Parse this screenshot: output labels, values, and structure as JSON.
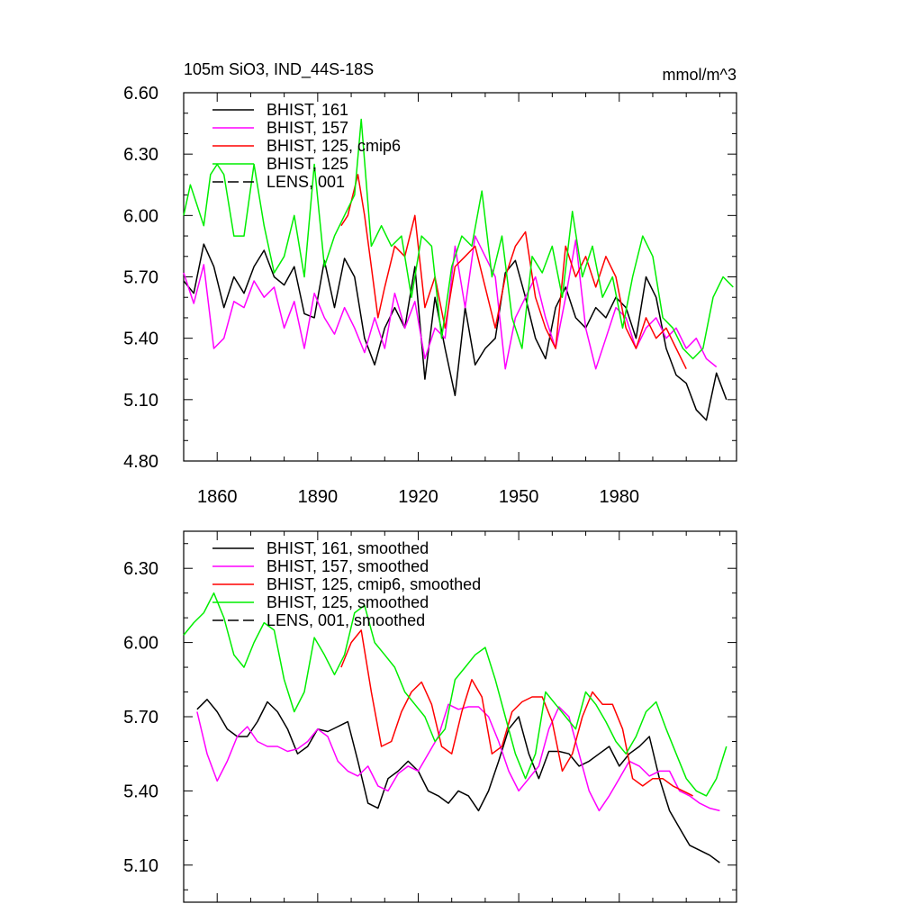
{
  "chart_data": [
    {
      "type": "line",
      "title": "105m SiO3, IND_44S-18S",
      "units": "mmol/m^3",
      "xlim": [
        1850,
        2015
      ],
      "ylim": [
        4.8,
        6.6
      ],
      "xticks": [
        1860,
        1890,
        1920,
        1950,
        1980
      ],
      "yticks": [
        4.8,
        5.1,
        5.4,
        5.7,
        6.0,
        6.3,
        6.6
      ],
      "ytick_labels": [
        "4.80",
        "5.10",
        "5.40",
        "5.70",
        "6.00",
        "6.30",
        "6.60"
      ],
      "xtick_labels": [
        "1860",
        "1890",
        "1920",
        "1950",
        "1980"
      ],
      "show_xtick_labels": true,
      "legend": "top-left",
      "grid": false,
      "series": [
        {
          "name": "BHIST, 161",
          "color": "#000000",
          "dash": "solid",
          "x": [
            1850,
            1853,
            1856,
            1859,
            1862,
            1865,
            1868,
            1871,
            1874,
            1877,
            1880,
            1883,
            1886,
            1889,
            1892,
            1895,
            1898,
            1901,
            1904,
            1907,
            1910,
            1913,
            1916,
            1919,
            1922,
            1925,
            1928,
            1931,
            1934,
            1937,
            1940,
            1943,
            1946,
            1949,
            1952,
            1955,
            1958,
            1961,
            1964,
            1967,
            1970,
            1973,
            1976,
            1979,
            1982,
            1985,
            1988,
            1991,
            1994,
            1997,
            2000,
            2003,
            2006,
            2009,
            2012
          ],
          "y": [
            5.68,
            5.62,
            5.86,
            5.75,
            5.55,
            5.7,
            5.62,
            5.75,
            5.83,
            5.7,
            5.66,
            5.75,
            5.52,
            5.5,
            5.78,
            5.55,
            5.79,
            5.7,
            5.4,
            5.27,
            5.45,
            5.55,
            5.45,
            5.75,
            5.2,
            5.6,
            5.35,
            5.12,
            5.55,
            5.27,
            5.35,
            5.4,
            5.72,
            5.78,
            5.6,
            5.4,
            5.3,
            5.55,
            5.65,
            5.5,
            5.45,
            5.55,
            5.5,
            5.6,
            5.55,
            5.4,
            5.7,
            5.6,
            5.35,
            5.22,
            5.18,
            5.05,
            5.0,
            5.23,
            5.1
          ]
        },
        {
          "name": "BHIST, 157",
          "color": "#ff00ff",
          "dash": "solid",
          "x": [
            1850,
            1853,
            1856,
            1859,
            1862,
            1865,
            1868,
            1871,
            1874,
            1877,
            1880,
            1883,
            1886,
            1889,
            1892,
            1895,
            1898,
            1901,
            1904,
            1907,
            1910,
            1913,
            1916,
            1919,
            1922,
            1925,
            1928,
            1931,
            1934,
            1937,
            1940,
            1943,
            1946,
            1949,
            1952,
            1955,
            1958,
            1961,
            1964,
            1967,
            1970,
            1973,
            1976,
            1979,
            1982,
            1985,
            1988,
            1991,
            1994,
            1997,
            2000,
            2003,
            2006,
            2009
          ],
          "y": [
            5.72,
            5.57,
            5.76,
            5.35,
            5.4,
            5.58,
            5.55,
            5.68,
            5.6,
            5.65,
            5.45,
            5.58,
            5.35,
            5.62,
            5.5,
            5.42,
            5.55,
            5.45,
            5.33,
            5.5,
            5.35,
            5.62,
            5.45,
            5.58,
            5.3,
            5.45,
            5.4,
            5.85,
            5.55,
            5.9,
            5.8,
            5.7,
            5.25,
            5.5,
            5.6,
            5.7,
            5.5,
            5.35,
            5.6,
            5.88,
            5.45,
            5.25,
            5.4,
            5.55,
            5.5,
            5.35,
            5.45,
            5.5,
            5.4,
            5.45,
            5.35,
            5.4,
            5.3,
            5.26
          ]
        },
        {
          "name": "BHIST, 125, cmip6",
          "color": "#ff0000",
          "dash": "solid",
          "x": [
            1897,
            1899,
            1902,
            1904,
            1906,
            1908,
            1910,
            1913,
            1916,
            1919,
            1922,
            1925,
            1928,
            1931,
            1934,
            1937,
            1940,
            1943,
            1946,
            1949,
            1952,
            1955,
            1958,
            1961,
            1964,
            1967,
            1970,
            1973,
            1976,
            1979,
            1982,
            1985,
            1988,
            1991,
            1994,
            1997,
            2000
          ],
          "y": [
            5.95,
            6.0,
            6.2,
            6.0,
            5.75,
            5.5,
            5.65,
            5.85,
            5.8,
            6.0,
            5.55,
            5.7,
            5.45,
            5.75,
            5.8,
            5.85,
            5.65,
            5.45,
            5.7,
            5.85,
            5.92,
            5.6,
            5.45,
            5.35,
            5.85,
            5.7,
            5.8,
            5.65,
            5.8,
            5.7,
            5.45,
            5.35,
            5.5,
            5.4,
            5.45,
            5.35,
            5.25
          ]
        },
        {
          "name": "BHIST, 125",
          "color": "#00ee00",
          "dash": "solid",
          "x": [
            1850,
            1852,
            1854,
            1856,
            1858,
            1860,
            1862,
            1865,
            1868,
            1871,
            1874,
            1877,
            1880,
            1883,
            1886,
            1889,
            1892,
            1895,
            1898,
            1901,
            1903,
            1906,
            1909,
            1912,
            1915,
            1918,
            1921,
            1924,
            1927,
            1930,
            1933,
            1936,
            1939,
            1942,
            1945,
            1948,
            1951,
            1954,
            1957,
            1960,
            1963,
            1966,
            1969,
            1972,
            1975,
            1978,
            1981,
            1984,
            1987,
            1990,
            1993,
            1996,
            1999,
            2002,
            2005,
            2008,
            2011,
            2014
          ],
          "y": [
            6.0,
            6.15,
            6.05,
            5.95,
            6.2,
            6.25,
            6.2,
            5.9,
            5.9,
            6.25,
            5.95,
            5.72,
            5.8,
            6.0,
            5.7,
            6.25,
            5.75,
            5.9,
            6.0,
            6.1,
            6.47,
            5.85,
            5.95,
            5.85,
            5.9,
            5.6,
            5.9,
            5.85,
            5.4,
            5.75,
            5.9,
            5.85,
            6.12,
            5.7,
            5.9,
            5.5,
            5.35,
            5.8,
            5.72,
            5.85,
            5.6,
            6.02,
            5.7,
            5.85,
            5.6,
            5.7,
            5.45,
            5.7,
            5.9,
            5.8,
            5.5,
            5.45,
            5.35,
            5.3,
            5.35,
            5.6,
            5.7,
            5.65
          ]
        },
        {
          "name": "LENS, 001",
          "color": "#000000",
          "dash": "dashed",
          "x": [],
          "y": []
        }
      ]
    },
    {
      "type": "line",
      "title": "",
      "units": "",
      "xlim": [
        1850,
        2015
      ],
      "ylim": [
        4.95,
        6.45
      ],
      "xticks": [
        1860,
        1890,
        1920,
        1950,
        1980
      ],
      "yticks": [
        5.1,
        5.4,
        5.7,
        6.0,
        6.3
      ],
      "ytick_labels": [
        "5.10",
        "5.40",
        "5.70",
        "6.00",
        "6.30"
      ],
      "xtick_labels": [],
      "show_xtick_labels": false,
      "legend": "top-left",
      "grid": false,
      "series": [
        {
          "name": "BHIST, 161, smoothed",
          "color": "#000000",
          "dash": "solid",
          "x": [
            1854,
            1857,
            1860,
            1863,
            1866,
            1869,
            1872,
            1875,
            1878,
            1881,
            1884,
            1887,
            1890,
            1893,
            1896,
            1899,
            1902,
            1905,
            1908,
            1911,
            1914,
            1917,
            1920,
            1923,
            1926,
            1929,
            1932,
            1935,
            1938,
            1941,
            1944,
            1947,
            1950,
            1953,
            1956,
            1959,
            1962,
            1965,
            1968,
            1971,
            1974,
            1977,
            1980,
            1983,
            1986,
            1989,
            1992,
            1995,
            1998,
            2001,
            2004,
            2007,
            2010
          ],
          "y": [
            5.73,
            5.77,
            5.72,
            5.65,
            5.62,
            5.62,
            5.68,
            5.76,
            5.72,
            5.65,
            5.55,
            5.58,
            5.65,
            5.64,
            5.66,
            5.68,
            5.52,
            5.35,
            5.33,
            5.45,
            5.48,
            5.52,
            5.48,
            5.4,
            5.38,
            5.35,
            5.4,
            5.38,
            5.32,
            5.4,
            5.52,
            5.65,
            5.7,
            5.55,
            5.45,
            5.56,
            5.56,
            5.55,
            5.5,
            5.52,
            5.55,
            5.58,
            5.5,
            5.55,
            5.58,
            5.62,
            5.45,
            5.32,
            5.25,
            5.18,
            5.16,
            5.14,
            5.11
          ]
        },
        {
          "name": "BHIST, 157, smoothed",
          "color": "#ff00ff",
          "dash": "solid",
          "x": [
            1854,
            1857,
            1860,
            1863,
            1866,
            1869,
            1872,
            1875,
            1878,
            1881,
            1884,
            1887,
            1890,
            1893,
            1896,
            1899,
            1902,
            1905,
            1908,
            1911,
            1914,
            1917,
            1920,
            1923,
            1926,
            1929,
            1932,
            1935,
            1938,
            1941,
            1944,
            1947,
            1950,
            1953,
            1956,
            1959,
            1962,
            1965,
            1968,
            1971,
            1974,
            1977,
            1980,
            1983,
            1986,
            1989,
            1992,
            1995,
            1998,
            2001,
            2004,
            2007,
            2010
          ],
          "y": [
            5.72,
            5.55,
            5.44,
            5.52,
            5.62,
            5.66,
            5.6,
            5.58,
            5.58,
            5.56,
            5.57,
            5.6,
            5.65,
            5.62,
            5.52,
            5.48,
            5.46,
            5.5,
            5.42,
            5.4,
            5.47,
            5.5,
            5.48,
            5.55,
            5.62,
            5.75,
            5.73,
            5.74,
            5.74,
            5.7,
            5.6,
            5.48,
            5.4,
            5.45,
            5.5,
            5.65,
            5.74,
            5.7,
            5.55,
            5.4,
            5.32,
            5.38,
            5.45,
            5.52,
            5.5,
            5.46,
            5.48,
            5.48,
            5.4,
            5.38,
            5.35,
            5.33,
            5.32
          ]
        },
        {
          "name": "BHIST, 125, cmip6, smoothed",
          "color": "#ff0000",
          "dash": "solid",
          "x": [
            1897,
            1900,
            1903,
            1906,
            1909,
            1912,
            1915,
            1918,
            1921,
            1924,
            1927,
            1930,
            1933,
            1936,
            1939,
            1942,
            1945,
            1948,
            1951,
            1954,
            1957,
            1960,
            1963,
            1966,
            1969,
            1972,
            1975,
            1978,
            1981,
            1984,
            1987,
            1990,
            1993,
            1996,
            1999,
            2002
          ],
          "y": [
            5.9,
            6.0,
            6.05,
            5.8,
            5.58,
            5.6,
            5.72,
            5.8,
            5.84,
            5.75,
            5.58,
            5.55,
            5.72,
            5.85,
            5.78,
            5.55,
            5.58,
            5.72,
            5.76,
            5.78,
            5.78,
            5.68,
            5.48,
            5.55,
            5.7,
            5.8,
            5.75,
            5.75,
            5.65,
            5.45,
            5.42,
            5.45,
            5.45,
            5.42,
            5.4,
            5.38
          ]
        },
        {
          "name": "BHIST, 125, smoothed",
          "color": "#00ee00",
          "dash": "solid",
          "x": [
            1850,
            1853,
            1856,
            1859,
            1862,
            1865,
            1868,
            1871,
            1874,
            1877,
            1880,
            1883,
            1886,
            1889,
            1892,
            1895,
            1898,
            1901,
            1904,
            1907,
            1910,
            1913,
            1916,
            1919,
            1922,
            1925,
            1928,
            1931,
            1934,
            1937,
            1940,
            1943,
            1946,
            1949,
            1952,
            1955,
            1958,
            1961,
            1964,
            1967,
            1970,
            1973,
            1976,
            1979,
            1982,
            1985,
            1988,
            1991,
            1994,
            1997,
            2000,
            2003,
            2006,
            2009,
            2012
          ],
          "y": [
            6.03,
            6.08,
            6.12,
            6.2,
            6.1,
            5.95,
            5.9,
            6.0,
            6.08,
            6.05,
            5.85,
            5.72,
            5.8,
            6.02,
            5.95,
            5.87,
            5.95,
            6.12,
            6.15,
            6.0,
            5.95,
            5.9,
            5.8,
            5.75,
            5.7,
            5.6,
            5.65,
            5.85,
            5.9,
            5.95,
            5.98,
            5.85,
            5.7,
            5.55,
            5.45,
            5.55,
            5.8,
            5.75,
            5.7,
            5.65,
            5.8,
            5.75,
            5.68,
            5.6,
            5.55,
            5.62,
            5.72,
            5.76,
            5.65,
            5.55,
            5.45,
            5.4,
            5.38,
            5.45,
            5.58
          ]
        },
        {
          "name": "LENS, 001, smoothed",
          "color": "#000000",
          "dash": "dashed",
          "x": [],
          "y": []
        }
      ]
    }
  ]
}
